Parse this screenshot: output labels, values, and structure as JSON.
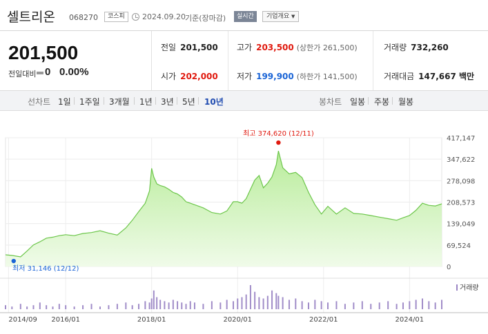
{
  "header": {
    "name": "셀트리온",
    "code": "068270",
    "market": "코스피",
    "date": "2024.09.20",
    "date_suffix": "기준(장마감)",
    "realtime": "실시간",
    "overview": "기업개요"
  },
  "quote": {
    "price": "201,500",
    "change_label": "전일대비",
    "change_value": "0",
    "change_rate": "0.00%",
    "prev_close_label": "전일",
    "prev_close": "201,500",
    "open_label": "시가",
    "open": "202,000",
    "high_label": "고가",
    "high": "203,500",
    "upper_limit": "(상한가 261,500)",
    "low_label": "저가",
    "low": "199,900",
    "lower_limit": "(하한가 141,500)",
    "volume_label": "거래량",
    "volume": "732,260",
    "amount_label": "거래대금",
    "amount": "147,667 백만"
  },
  "periods": {
    "line_label": "선차트",
    "items": [
      "1일",
      "1주일",
      "3개월",
      "1년",
      "3년",
      "5년",
      "10년"
    ],
    "active": "10년",
    "candle_label": "봉차트",
    "candle_items": [
      "일봉",
      "주봉",
      "월봉"
    ]
  },
  "chart_data": {
    "type": "area",
    "y_ticks": [
      "417,147",
      "347,622",
      "278,098",
      "208,573",
      "139,049",
      "69,524",
      "0"
    ],
    "ylim": [
      0,
      417147
    ],
    "x_tick_labels": [
      "2014/09",
      "2016/01",
      "2018/01",
      "2020/01",
      "2022/01",
      "2024/01"
    ],
    "x_tick_years": [
      2014.67,
      2016.0,
      2018.0,
      2020.0,
      2022.0,
      2024.0
    ],
    "xlim": [
      2014.6,
      2024.75
    ],
    "max_annotation": "최고 374,620 (12/11)",
    "min_annotation": "최저 31,146 (12/12)",
    "max_point": {
      "x": 2020.95,
      "y": 374620
    },
    "min_point": {
      "x": 2014.95,
      "y": 31146
    },
    "volume_label": "거래량",
    "series": [
      {
        "x": [
          2014.6,
          2014.75,
          2014.95,
          2015.1,
          2015.25,
          2015.4,
          2015.55,
          2015.7,
          2015.85,
          2016.0,
          2016.2,
          2016.4,
          2016.6,
          2016.8,
          2017.0,
          2017.2,
          2017.4,
          2017.55,
          2017.7,
          2017.85,
          2017.95,
          2018.0,
          2018.05,
          2018.12,
          2018.2,
          2018.3,
          2018.4,
          2018.5,
          2018.6,
          2018.7,
          2018.8,
          2018.9,
          2019.0,
          2019.2,
          2019.4,
          2019.6,
          2019.75,
          2019.9,
          2020.0,
          2020.1,
          2020.2,
          2020.3,
          2020.4,
          2020.5,
          2020.6,
          2020.7,
          2020.8,
          2020.9,
          2020.95,
          2021.05,
          2021.2,
          2021.35,
          2021.5,
          2021.65,
          2021.8,
          2021.95,
          2022.1,
          2022.3,
          2022.5,
          2022.7,
          2022.9,
          2023.1,
          2023.3,
          2023.5,
          2023.7,
          2023.85,
          2024.0,
          2024.15,
          2024.3,
          2024.45,
          2024.6,
          2024.75
        ],
        "y": [
          38000,
          36000,
          31146,
          50000,
          70000,
          80000,
          92000,
          95000,
          100000,
          103000,
          100000,
          107000,
          110000,
          116000,
          108000,
          102000,
          125000,
          150000,
          178000,
          205000,
          245000,
          318000,
          290000,
          268000,
          262000,
          258000,
          250000,
          240000,
          235000,
          225000,
          210000,
          205000,
          200000,
          190000,
          175000,
          170000,
          180000,
          210000,
          210000,
          205000,
          220000,
          250000,
          280000,
          295000,
          255000,
          270000,
          290000,
          330000,
          374620,
          320000,
          300000,
          305000,
          288000,
          240000,
          200000,
          170000,
          195000,
          170000,
          190000,
          172000,
          170000,
          165000,
          160000,
          155000,
          150000,
          158000,
          165000,
          182000,
          205000,
          198000,
          196000,
          203000
        ]
      }
    ],
    "volume": [
      3,
      2,
      4,
      2,
      3,
      5,
      3,
      2,
      4,
      3,
      2,
      3,
      4,
      2,
      3,
      4,
      5,
      3,
      4,
      6,
      5,
      8,
      14,
      9,
      7,
      6,
      5,
      7,
      6,
      5,
      4,
      6,
      5,
      4,
      6,
      5,
      7,
      6,
      8,
      9,
      11,
      18,
      13,
      9,
      8,
      10,
      14,
      12,
      10,
      9,
      7,
      8,
      6,
      5,
      7,
      6,
      5,
      6,
      4,
      5,
      6,
      4,
      5,
      6,
      4,
      5,
      6,
      7,
      8,
      6,
      5,
      7
    ]
  }
}
